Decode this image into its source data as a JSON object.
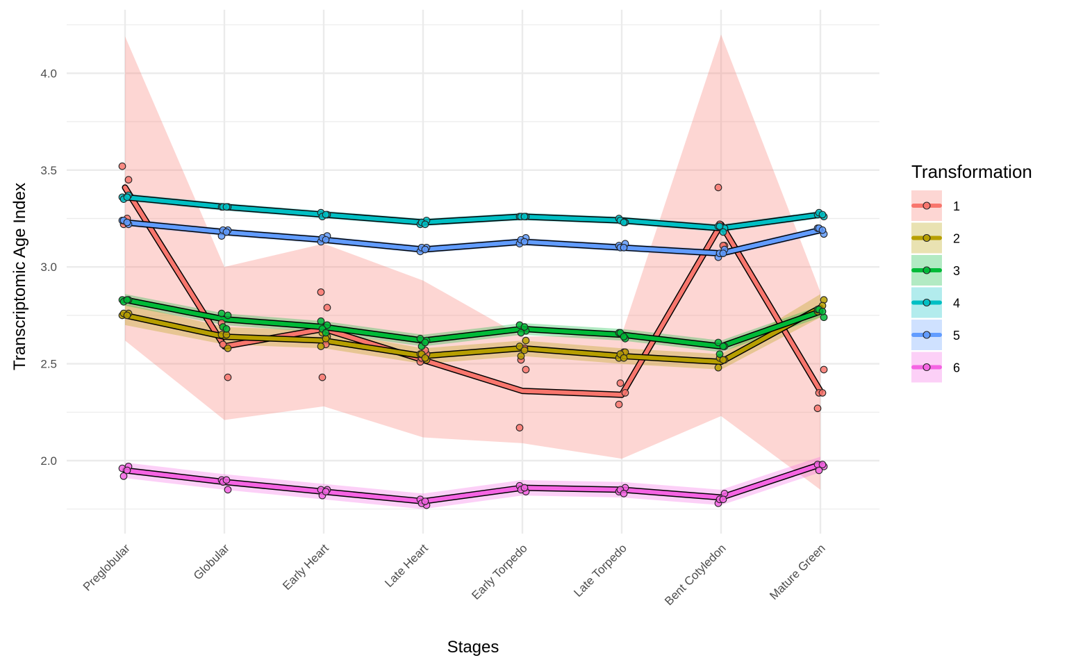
{
  "chart_data": {
    "type": "line",
    "title": "",
    "xlabel": "Stages",
    "ylabel": "Transcriptomic Age Index",
    "categories": [
      "Preglobular",
      "Globular",
      "Early Heart",
      "Late Heart",
      "Early Torpedo",
      "Late Torpedo",
      "Bent Cotyledon",
      "Mature Green"
    ],
    "yticks": [
      "2.0",
      "2.5",
      "3.0",
      "3.5",
      "4.0"
    ],
    "ylim": [
      1.6,
      4.27
    ],
    "grid": true,
    "legend": {
      "title": "Transformation",
      "position": "right"
    },
    "series": [
      {
        "name": "1",
        "color": "#F8766D",
        "values": [
          3.41,
          2.59,
          2.68,
          2.52,
          2.36,
          2.34,
          3.22,
          2.36
        ],
        "ribbon_low": [
          2.62,
          2.21,
          2.28,
          2.12,
          2.09,
          2.01,
          2.23,
          1.85
        ],
        "ribbon_high": [
          4.19,
          3.0,
          3.12,
          2.93,
          2.64,
          2.65,
          4.2,
          2.87
        ],
        "points": [
          [
            3.52,
            3.45,
            3.22,
            3.25
          ],
          [
            2.71,
            2.43,
            2.6,
            2.68
          ],
          [
            2.87,
            2.79,
            2.43,
            2.6
          ],
          [
            2.51,
            2.55,
            2.53,
            2.57
          ],
          [
            2.17,
            2.47,
            2.52,
            2.58
          ],
          [
            2.29,
            2.35,
            2.4,
            2.56
          ],
          [
            3.41,
            3.11,
            3.22,
            3.11
          ],
          [
            2.27,
            2.47,
            2.35,
            2.35
          ]
        ]
      },
      {
        "name": "2",
        "color": "#B79F00",
        "values": [
          2.75,
          2.64,
          2.62,
          2.54,
          2.58,
          2.54,
          2.51,
          2.79
        ],
        "ribbon_low": [
          2.7,
          2.6,
          2.58,
          2.5,
          2.54,
          2.5,
          2.47,
          2.74
        ],
        "ribbon_high": [
          2.81,
          2.69,
          2.67,
          2.58,
          2.62,
          2.58,
          2.55,
          2.86
        ],
        "points": [
          [
            2.75,
            2.76,
            2.76,
            2.75
          ],
          [
            2.65,
            2.58,
            2.69,
            2.65
          ],
          [
            2.59,
            2.64,
            2.66,
            2.63
          ],
          [
            2.55,
            2.52,
            2.55,
            2.53
          ],
          [
            2.59,
            2.62,
            2.54,
            2.57
          ],
          [
            2.53,
            2.56,
            2.55,
            2.53
          ],
          [
            2.48,
            2.52,
            2.53,
            2.52
          ],
          [
            2.77,
            2.83,
            2.78,
            2.8
          ]
        ]
      },
      {
        "name": "3",
        "color": "#00BA38",
        "values": [
          2.83,
          2.73,
          2.69,
          2.62,
          2.68,
          2.65,
          2.59,
          2.77
        ],
        "ribbon_low": [
          2.8,
          2.7,
          2.66,
          2.59,
          2.65,
          2.62,
          2.56,
          2.74
        ],
        "ribbon_high": [
          2.86,
          2.76,
          2.72,
          2.65,
          2.71,
          2.68,
          2.62,
          2.8
        ],
        "points": [
          [
            2.83,
            2.83,
            2.82,
            2.83
          ],
          [
            2.76,
            2.75,
            2.69,
            2.68
          ],
          [
            2.72,
            2.7,
            2.68,
            2.66
          ],
          [
            2.63,
            2.62,
            2.59,
            2.61
          ],
          [
            2.7,
            2.67,
            2.66,
            2.69
          ],
          [
            2.66,
            2.63,
            2.66,
            2.64
          ],
          [
            2.61,
            2.59,
            2.55,
            2.59
          ],
          [
            2.78,
            2.74,
            2.78,
            2.77
          ]
        ]
      },
      {
        "name": "4",
        "color": "#00BFC4",
        "values": [
          3.36,
          3.31,
          3.27,
          3.23,
          3.26,
          3.24,
          3.2,
          3.27
        ],
        "ribbon_low": [
          3.34,
          3.29,
          3.25,
          3.21,
          3.24,
          3.22,
          3.18,
          3.25
        ],
        "ribbon_high": [
          3.38,
          3.33,
          3.29,
          3.25,
          3.28,
          3.26,
          3.22,
          3.29
        ],
        "points": [
          [
            3.36,
            3.37,
            3.35,
            3.36
          ],
          [
            3.31,
            3.31,
            3.31,
            3.31
          ],
          [
            3.28,
            3.27,
            3.26,
            3.27
          ],
          [
            3.22,
            3.24,
            3.23,
            3.22
          ],
          [
            3.26,
            3.26,
            3.26,
            3.26
          ],
          [
            3.25,
            3.23,
            3.24,
            3.23
          ],
          [
            3.21,
            3.2,
            3.21,
            3.18
          ],
          [
            3.27,
            3.26,
            3.28,
            3.27
          ]
        ]
      },
      {
        "name": "5",
        "color": "#619CFF",
        "values": [
          3.23,
          3.18,
          3.14,
          3.09,
          3.13,
          3.1,
          3.07,
          3.19
        ],
        "ribbon_low": [
          3.21,
          3.16,
          3.12,
          3.07,
          3.11,
          3.08,
          3.05,
          3.17
        ],
        "ribbon_high": [
          3.25,
          3.2,
          3.16,
          3.11,
          3.15,
          3.12,
          3.09,
          3.21
        ],
        "points": [
          [
            3.24,
            3.22,
            3.24,
            3.23
          ],
          [
            3.16,
            3.19,
            3.19,
            3.18
          ],
          [
            3.13,
            3.16,
            3.15,
            3.14
          ],
          [
            3.08,
            3.1,
            3.1,
            3.09
          ],
          [
            3.12,
            3.15,
            3.14,
            3.13
          ],
          [
            3.11,
            3.12,
            3.1,
            3.1
          ],
          [
            3.05,
            3.09,
            3.07,
            3.07
          ],
          [
            3.2,
            3.17,
            3.2,
            3.19
          ]
        ]
      },
      {
        "name": "6",
        "color": "#F564E3",
        "values": [
          1.95,
          1.89,
          1.84,
          1.79,
          1.86,
          1.85,
          1.81,
          1.98
        ],
        "ribbon_low": [
          1.91,
          1.85,
          1.8,
          1.75,
          1.82,
          1.81,
          1.77,
          1.94
        ],
        "ribbon_high": [
          1.99,
          1.93,
          1.88,
          1.83,
          1.9,
          1.89,
          1.85,
          2.02
        ],
        "points": [
          [
            1.96,
            1.97,
            1.92,
            1.95
          ],
          [
            1.9,
            1.85,
            1.89,
            1.9
          ],
          [
            1.85,
            1.85,
            1.82,
            1.84
          ],
          [
            1.8,
            1.77,
            1.78,
            1.79
          ],
          [
            1.87,
            1.84,
            1.85,
            1.86
          ],
          [
            1.84,
            1.86,
            1.85,
            1.83
          ],
          [
            1.78,
            1.83,
            1.8,
            1.8
          ],
          [
            1.98,
            1.97,
            1.95,
            1.98
          ]
        ]
      }
    ]
  }
}
